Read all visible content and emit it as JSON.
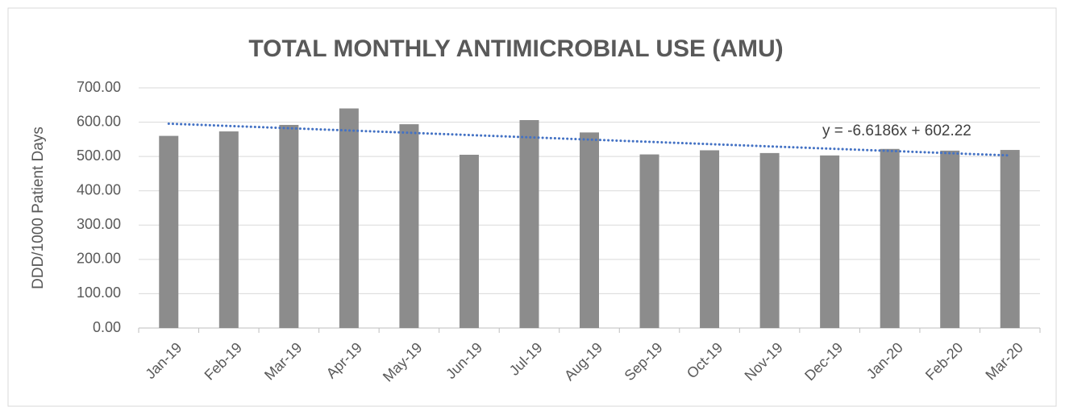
{
  "chart_data": {
    "type": "bar",
    "title": "TOTAL MONTHLY ANTIMICROBIAL USE (AMU)",
    "y_label": "DDD/1000 Patient Days",
    "categories": [
      "Jan-19",
      "Feb-19",
      "Mar-19",
      "Apr-19",
      "May-19",
      "Jun-19",
      "Jul-19",
      "Aug-19",
      "Sep-19",
      "Oct-19",
      "Nov-19",
      "Dec-19",
      "Jan-20",
      "Feb-20",
      "Mar-20"
    ],
    "values": [
      560,
      573,
      592,
      640,
      594,
      505,
      606,
      570,
      506,
      518,
      510,
      503,
      522,
      517,
      519
    ],
    "color": "#8c8c8c",
    "ylim": [
      0,
      700
    ],
    "yticks": [
      {
        "value": 0,
        "label": "0.00"
      },
      {
        "value": 100,
        "label": "100.00"
      },
      {
        "value": 200,
        "label": "200.00"
      },
      {
        "value": 300,
        "label": "300.00"
      },
      {
        "value": 400,
        "label": "400.00"
      },
      {
        "value": 500,
        "label": "500.00"
      },
      {
        "value": 600,
        "label": "600.00"
      },
      {
        "value": 700,
        "label": "700.00"
      }
    ],
    "grid": true,
    "trendline": {
      "label": "y = -6.6186x + 602.22",
      "slope": -6.6186,
      "intercept": 602.22,
      "color": "#4472c4"
    }
  }
}
